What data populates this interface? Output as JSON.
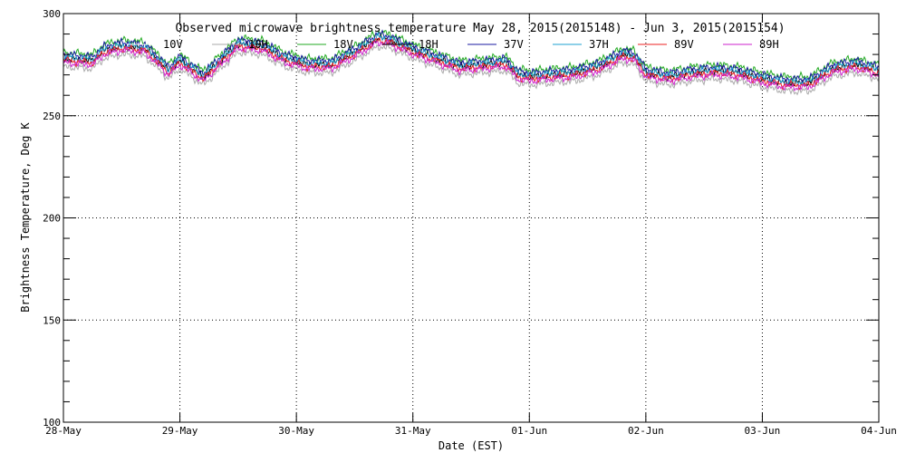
{
  "chart_data": {
    "type": "line",
    "title": "Observed microwave brightness temperature May 28, 2015(2015148) - Jun  3, 2015(2015154)",
    "xlabel": "Date (EST)",
    "ylabel": "Brightness Temperature, Deg K",
    "xlim": [
      0,
      7
    ],
    "ylim": [
      100,
      300
    ],
    "grid": true,
    "legend_position": "top",
    "x_tick_labels": [
      "28-May",
      "29-May",
      "30-May",
      "31-May",
      "01-Jun",
      "02-Jun",
      "03-Jun",
      "04-Jun"
    ],
    "y_tick_labels": [
      "100",
      "150",
      "200",
      "250",
      "300"
    ],
    "y_ticks": [
      100,
      150,
      200,
      250,
      300
    ],
    "base_curve": {
      "x": [
        0,
        0.25,
        0.35,
        0.5,
        0.7,
        0.85,
        0.9,
        1.0,
        1.2,
        1.5,
        1.7,
        1.9,
        2.1,
        2.3,
        2.5,
        2.7,
        2.8,
        3.0,
        3.2,
        3.4,
        3.6,
        3.8,
        3.9,
        4.0,
        4.2,
        4.4,
        4.6,
        4.8,
        4.9,
        5.0,
        5.2,
        5.4,
        5.6,
        5.8,
        6.0,
        6.2,
        6.4,
        6.6,
        6.8,
        7.0
      ],
      "y": [
        279,
        278,
        283,
        285,
        284,
        276,
        273,
        278,
        270,
        286,
        285,
        279,
        276,
        276,
        282,
        289,
        288,
        283,
        279,
        275,
        276,
        277,
        271,
        270,
        271,
        272,
        275,
        281,
        280,
        272,
        270,
        272,
        273,
        272,
        269,
        267,
        267,
        274,
        276,
        273
      ]
    },
    "series": [
      {
        "name": "10V",
        "color": "#ffffff",
        "offset": 0
      },
      {
        "name": "10H",
        "color": "#aaaaaa",
        "offset": -5
      },
      {
        "name": "18V",
        "color": "#22aa22",
        "offset": 2
      },
      {
        "name": "18H",
        "color": "#000000",
        "offset": -1
      },
      {
        "name": "37V",
        "color": "#1a1aa0",
        "offset": 1
      },
      {
        "name": "37H",
        "color": "#1ea0d0",
        "offset": -0.5
      },
      {
        "name": "89V",
        "color": "#ee2222",
        "offset": -2
      },
      {
        "name": "89H",
        "color": "#cc22cc",
        "offset": -3
      }
    ]
  }
}
